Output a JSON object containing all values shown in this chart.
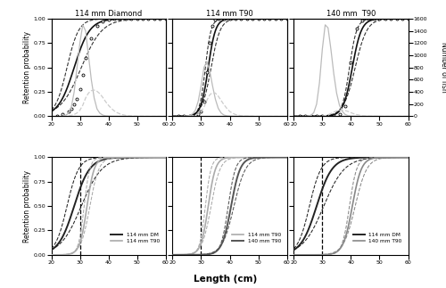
{
  "titles_upper": [
    "114 mm Diamond",
    "114 mm T90",
    "140 mm  T90"
  ],
  "xlabel": "Length (cm)",
  "ylabel_left": "Retention probability",
  "ylabel_right": "Number of fish",
  "xlim": [
    20,
    60
  ],
  "ylim_sel": [
    0.0,
    1.0
  ],
  "ylim_fish": [
    0,
    1600
  ],
  "yticks_sel": [
    0.0,
    0.25,
    0.5,
    0.75,
    1.0
  ],
  "yticks_fish": [
    0,
    200,
    400,
    600,
    800,
    1000,
    1200,
    1400,
    1600
  ],
  "xticks": [
    20,
    30,
    40,
    50,
    60
  ],
  "sel_params": [
    {
      "L50": 28.0,
      "SR": 6.0
    },
    {
      "L50": 32.5,
      "SR": 2.8
    },
    {
      "L50": 40.5,
      "SR": 3.5
    }
  ],
  "sel_ci_params": [
    {
      "L50_lo": 25.5,
      "L50_hi": 30.5,
      "SR_lo": 4.5,
      "SR_hi": 8.0
    },
    {
      "L50_lo": 31.5,
      "L50_hi": 33.5,
      "SR_lo": 2.2,
      "SR_hi": 3.5
    },
    {
      "L50_lo": 39.5,
      "L50_hi": 41.5,
      "SR_lo": 2.8,
      "SR_hi": 4.5
    }
  ],
  "cover_fish": [
    {
      "x": [
        24,
        25,
        26,
        27,
        28,
        29,
        30,
        31,
        32,
        33,
        34,
        35,
        36,
        37,
        38,
        39,
        40,
        41,
        42,
        43,
        44,
        45,
        46,
        47,
        48
      ],
      "y": [
        5,
        15,
        50,
        150,
        400,
        800,
        1200,
        1500,
        1400,
        1000,
        600,
        300,
        120,
        50,
        20,
        8,
        4,
        2,
        1,
        0,
        0,
        0,
        0,
        0,
        0
      ]
    },
    {
      "x": [
        24,
        25,
        26,
        27,
        28,
        29,
        30,
        31,
        32,
        33,
        34,
        35,
        36,
        37,
        38,
        39,
        40,
        41,
        42,
        43,
        44,
        45,
        46,
        47,
        48
      ],
      "y": [
        2,
        5,
        15,
        40,
        100,
        250,
        500,
        800,
        900,
        750,
        500,
        280,
        130,
        55,
        20,
        8,
        3,
        1,
        0,
        0,
        0,
        0,
        0,
        0,
        0
      ]
    },
    {
      "x": [
        24,
        25,
        26,
        27,
        28,
        29,
        30,
        31,
        32,
        33,
        34,
        35,
        36,
        37,
        38,
        39,
        40,
        41,
        42,
        43,
        44,
        45,
        46,
        47,
        48,
        49,
        50
      ],
      "y": [
        2,
        5,
        15,
        60,
        200,
        550,
        1100,
        1500,
        1450,
        1100,
        700,
        380,
        180,
        80,
        30,
        10,
        4,
        2,
        1,
        0,
        0,
        0,
        0,
        0,
        0,
        0,
        0
      ]
    }
  ],
  "codend_fish": [
    {
      "x": [
        24,
        25,
        26,
        27,
        28,
        29,
        30,
        31,
        32,
        33,
        34,
        35,
        36,
        37,
        38,
        39,
        40,
        41,
        42,
        43,
        44,
        45,
        46,
        47,
        48,
        49,
        50,
        52,
        54,
        56,
        58,
        60
      ],
      "y": [
        2,
        4,
        8,
        15,
        30,
        55,
        100,
        180,
        300,
        380,
        420,
        430,
        410,
        370,
        310,
        240,
        180,
        130,
        90,
        60,
        40,
        25,
        15,
        8,
        5,
        3,
        2,
        1,
        0,
        0,
        0,
        0
      ]
    },
    {
      "x": [
        24,
        25,
        26,
        27,
        28,
        29,
        30,
        31,
        32,
        33,
        34,
        35,
        36,
        37,
        38,
        39,
        40,
        41,
        42,
        43,
        44,
        45,
        46,
        47,
        48,
        49,
        50,
        52,
        54,
        56,
        58,
        60
      ],
      "y": [
        1,
        2,
        5,
        10,
        20,
        40,
        80,
        150,
        260,
        350,
        390,
        380,
        330,
        260,
        190,
        130,
        80,
        50,
        30,
        18,
        10,
        6,
        3,
        2,
        1,
        0,
        0,
        0,
        0,
        0,
        0,
        0
      ]
    },
    {
      "x": [
        28,
        29,
        30,
        31,
        32,
        33,
        34,
        35,
        36,
        37,
        38,
        39,
        40,
        41,
        42,
        43,
        44,
        45,
        46,
        47,
        48,
        49,
        50,
        52,
        54,
        56,
        58,
        60
      ],
      "y": [
        1,
        2,
        5,
        12,
        25,
        45,
        70,
        90,
        100,
        100,
        95,
        80,
        60,
        42,
        28,
        18,
        10,
        6,
        3,
        2,
        1,
        0,
        0,
        0,
        0,
        0,
        0,
        0
      ]
    }
  ],
  "exp_data": [
    {
      "x": [
        22,
        24,
        26,
        27,
        28,
        29,
        30,
        31,
        32,
        34,
        36,
        38,
        40,
        42,
        44,
        46,
        48,
        50,
        52,
        54,
        56,
        58,
        60
      ],
      "y": [
        0.0,
        0.02,
        0.05,
        0.08,
        0.12,
        0.18,
        0.28,
        0.42,
        0.6,
        0.8,
        0.93,
        0.97,
        0.99,
        1.0,
        1.0,
        1.0,
        1.0,
        1.0,
        1.0,
        1.0,
        1.0,
        1.0,
        1.0
      ]
    },
    {
      "x": [
        22,
        24,
        26,
        27,
        28,
        29,
        30,
        31,
        32,
        33,
        34,
        35,
        36,
        38,
        40,
        42,
        44,
        46,
        48,
        50,
        52,
        54,
        56,
        58,
        60
      ],
      "y": [
        0.0,
        0.0,
        0.0,
        0.0,
        0.01,
        0.02,
        0.05,
        0.15,
        0.45,
        0.75,
        0.93,
        0.99,
        1.0,
        1.0,
        1.0,
        1.0,
        1.0,
        1.0,
        1.0,
        1.0,
        1.0,
        1.0,
        1.0,
        1.0,
        1.0
      ]
    },
    {
      "x": [
        22,
        24,
        26,
        28,
        30,
        32,
        34,
        36,
        38,
        40,
        42,
        44,
        46,
        48,
        50,
        52,
        54,
        56,
        58,
        60
      ],
      "y": [
        0.0,
        0.0,
        0.0,
        0.0,
        0.0,
        0.0,
        0.0,
        0.02,
        0.1,
        0.55,
        0.9,
        0.98,
        1.0,
        1.0,
        1.0,
        1.0,
        1.0,
        1.0,
        1.0,
        1.0
      ]
    }
  ],
  "lower_panels": [
    {
      "curves": [
        {
          "L50": 28.0,
          "SR": 6.0,
          "L50_lo": 25.5,
          "L50_hi": 30.5,
          "SR_lo": 4.5,
          "SR_hi": 8.0,
          "color": "#222222",
          "lw": 1.4,
          "label": "114 mm DM"
        },
        {
          "L50": 32.5,
          "SR": 2.8,
          "L50_lo": 31.5,
          "L50_hi": 33.5,
          "SR_lo": 2.2,
          "SR_hi": 3.5,
          "color": "#aaaaaa",
          "lw": 1.2,
          "label": "114 mm T90"
        }
      ],
      "vline": 30.0
    },
    {
      "curves": [
        {
          "L50": 32.5,
          "SR": 2.8,
          "L50_lo": 31.5,
          "L50_hi": 33.5,
          "SR_lo": 2.2,
          "SR_hi": 3.5,
          "color": "#aaaaaa",
          "lw": 1.2,
          "label": "114 mm T90"
        },
        {
          "L50": 40.5,
          "SR": 3.5,
          "L50_lo": 39.5,
          "L50_hi": 41.5,
          "SR_lo": 2.8,
          "SR_hi": 4.5,
          "color": "#555555",
          "lw": 1.4,
          "label": "140 mm T90"
        }
      ],
      "vline": 30.0
    },
    {
      "curves": [
        {
          "L50": 28.0,
          "SR": 6.0,
          "L50_lo": 25.5,
          "L50_hi": 30.5,
          "SR_lo": 4.5,
          "SR_hi": 8.0,
          "color": "#222222",
          "lw": 1.4,
          "label": "114 mm DM"
        },
        {
          "L50": 40.5,
          "SR": 3.5,
          "L50_lo": 39.5,
          "L50_hi": 41.5,
          "SR_lo": 2.8,
          "SR_hi": 4.5,
          "color": "#888888",
          "lw": 1.2,
          "label": "140 mm T90"
        }
      ],
      "vline": 30.0
    }
  ],
  "color_model": "#111111",
  "color_ci": "#333333",
  "color_cover": "#bbbbbb",
  "color_codend_dashed": "#cccccc"
}
